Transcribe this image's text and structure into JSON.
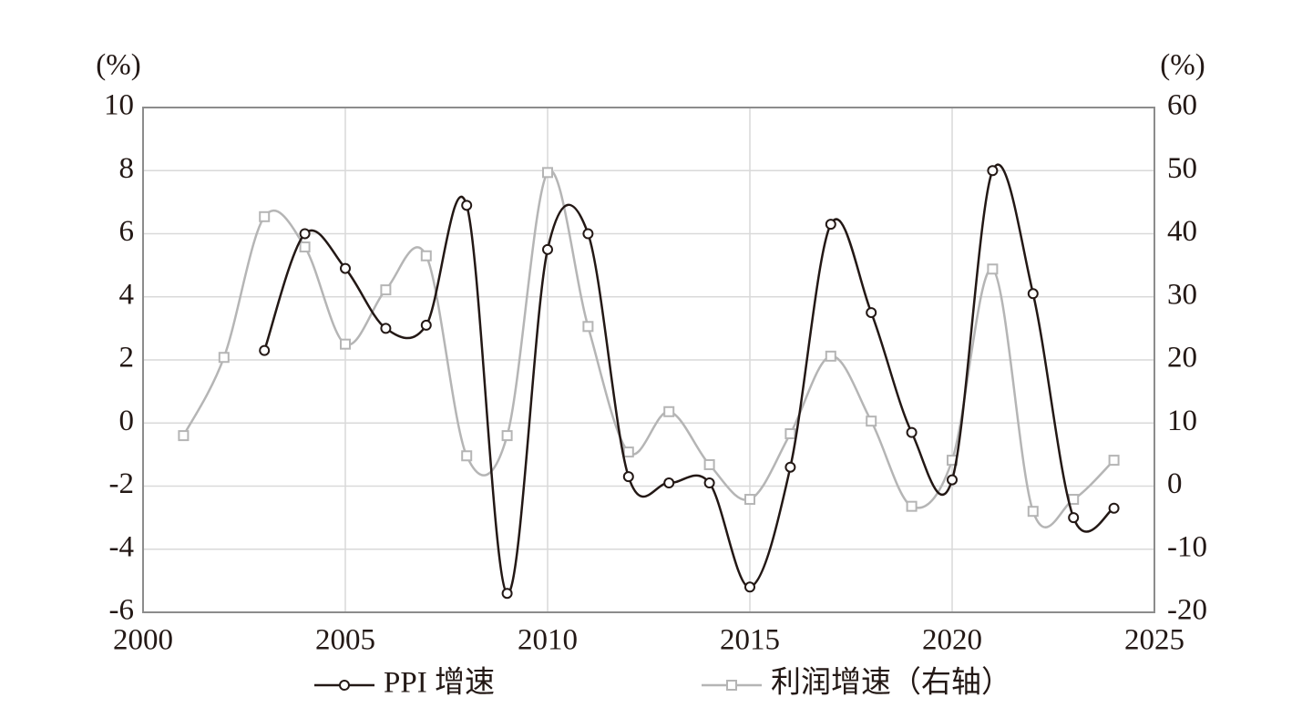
{
  "chart_data": {
    "type": "line",
    "y_unit": "(%)",
    "y2_unit": "(%)",
    "x": [
      2001,
      2002,
      2003,
      2004,
      2005,
      2006,
      2007,
      2008,
      2009,
      2010,
      2011,
      2012,
      2013,
      2014,
      2015,
      2016,
      2017,
      2018,
      2019,
      2020,
      2021,
      2022,
      2023,
      2024
    ],
    "series": [
      {
        "name": "PPI 增速",
        "color": "#231815",
        "marker": "circle",
        "values": [
          null,
          null,
          2.3,
          6.0,
          4.9,
          3.0,
          3.1,
          6.9,
          -5.4,
          5.5,
          6.0,
          -1.7,
          -1.9,
          -1.9,
          -5.2,
          -1.4,
          6.3,
          3.5,
          -0.3,
          -1.8,
          8.0,
          4.1,
          -3.0,
          -2.7
        ]
      },
      {
        "name": "利润增速（右轴）",
        "color": "#b5b5b5",
        "marker": "square",
        "axis": "y2",
        "values": [
          8.0,
          20.4,
          42.7,
          37.9,
          22.5,
          31.1,
          36.5,
          4.8,
          8.0,
          49.7,
          25.3,
          5.4,
          11.8,
          3.4,
          -2.1,
          8.3,
          20.6,
          10.3,
          -3.2,
          4.1,
          34.4,
          -4.0,
          -2.1,
          4.1
        ]
      }
    ],
    "xlim": [
      2000,
      2025
    ],
    "xticks": [
      2000,
      2005,
      2010,
      2015,
      2020,
      2025
    ],
    "ylim": [
      -6,
      10
    ],
    "yticks": [
      -6,
      -4,
      -2,
      0,
      2,
      4,
      6,
      8,
      10
    ],
    "y2lim": [
      -20,
      60
    ],
    "y2ticks": [
      -20,
      -10,
      0,
      10,
      20,
      30,
      40,
      50,
      60
    ],
    "grid": true,
    "smooth": true
  }
}
